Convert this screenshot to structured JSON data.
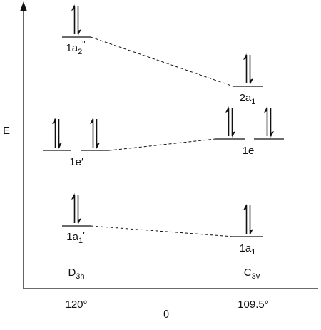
{
  "diagram": {
    "axes": {
      "y_label": "E",
      "x_label": "θ",
      "x_ticks": [
        {
          "label": "120°"
        },
        {
          "label": "109.5°"
        }
      ]
    },
    "columns": [
      {
        "id": "d3h",
        "symmetry_base": "D",
        "symmetry_sub": "3h"
      },
      {
        "id": "c3v",
        "symmetry_base": "C",
        "symmetry_sub": "3v"
      }
    ],
    "orbitals": [
      {
        "id": "1a2pp",
        "column": "d3h",
        "base": "1a",
        "sub": "2",
        "suffix": "\"",
        "electrons": 2
      },
      {
        "id": "1ep_a",
        "column": "d3h",
        "electrons": 2
      },
      {
        "id": "1ep_b",
        "column": "d3h",
        "base": "1e",
        "sub": "",
        "suffix": "′",
        "electrons": 2
      },
      {
        "id": "1a1p",
        "column": "d3h",
        "base": "1a",
        "sub": "1",
        "suffix": "′",
        "electrons": 2
      },
      {
        "id": "2a1",
        "column": "c3v",
        "base": "2a",
        "sub": "1",
        "suffix": "",
        "electrons": 2
      },
      {
        "id": "1e_a",
        "column": "c3v",
        "electrons": 2
      },
      {
        "id": "1e_b",
        "column": "c3v",
        "electrons": 2
      },
      {
        "id": "1e_label",
        "column": "c3v",
        "base": "1e",
        "sub": "",
        "suffix": "",
        "electrons": 0
      },
      {
        "id": "1a1",
        "column": "c3v",
        "base": "1a",
        "sub": "1",
        "suffix": "",
        "electrons": 2
      }
    ],
    "correlations": [
      {
        "from": "1a2pp",
        "to": "2a1",
        "style": "dashed"
      },
      {
        "from": "1ep_b",
        "to": "1e_a",
        "style": "dashed"
      },
      {
        "from": "1a1p",
        "to": "1a1",
        "style": "dashed"
      }
    ]
  }
}
